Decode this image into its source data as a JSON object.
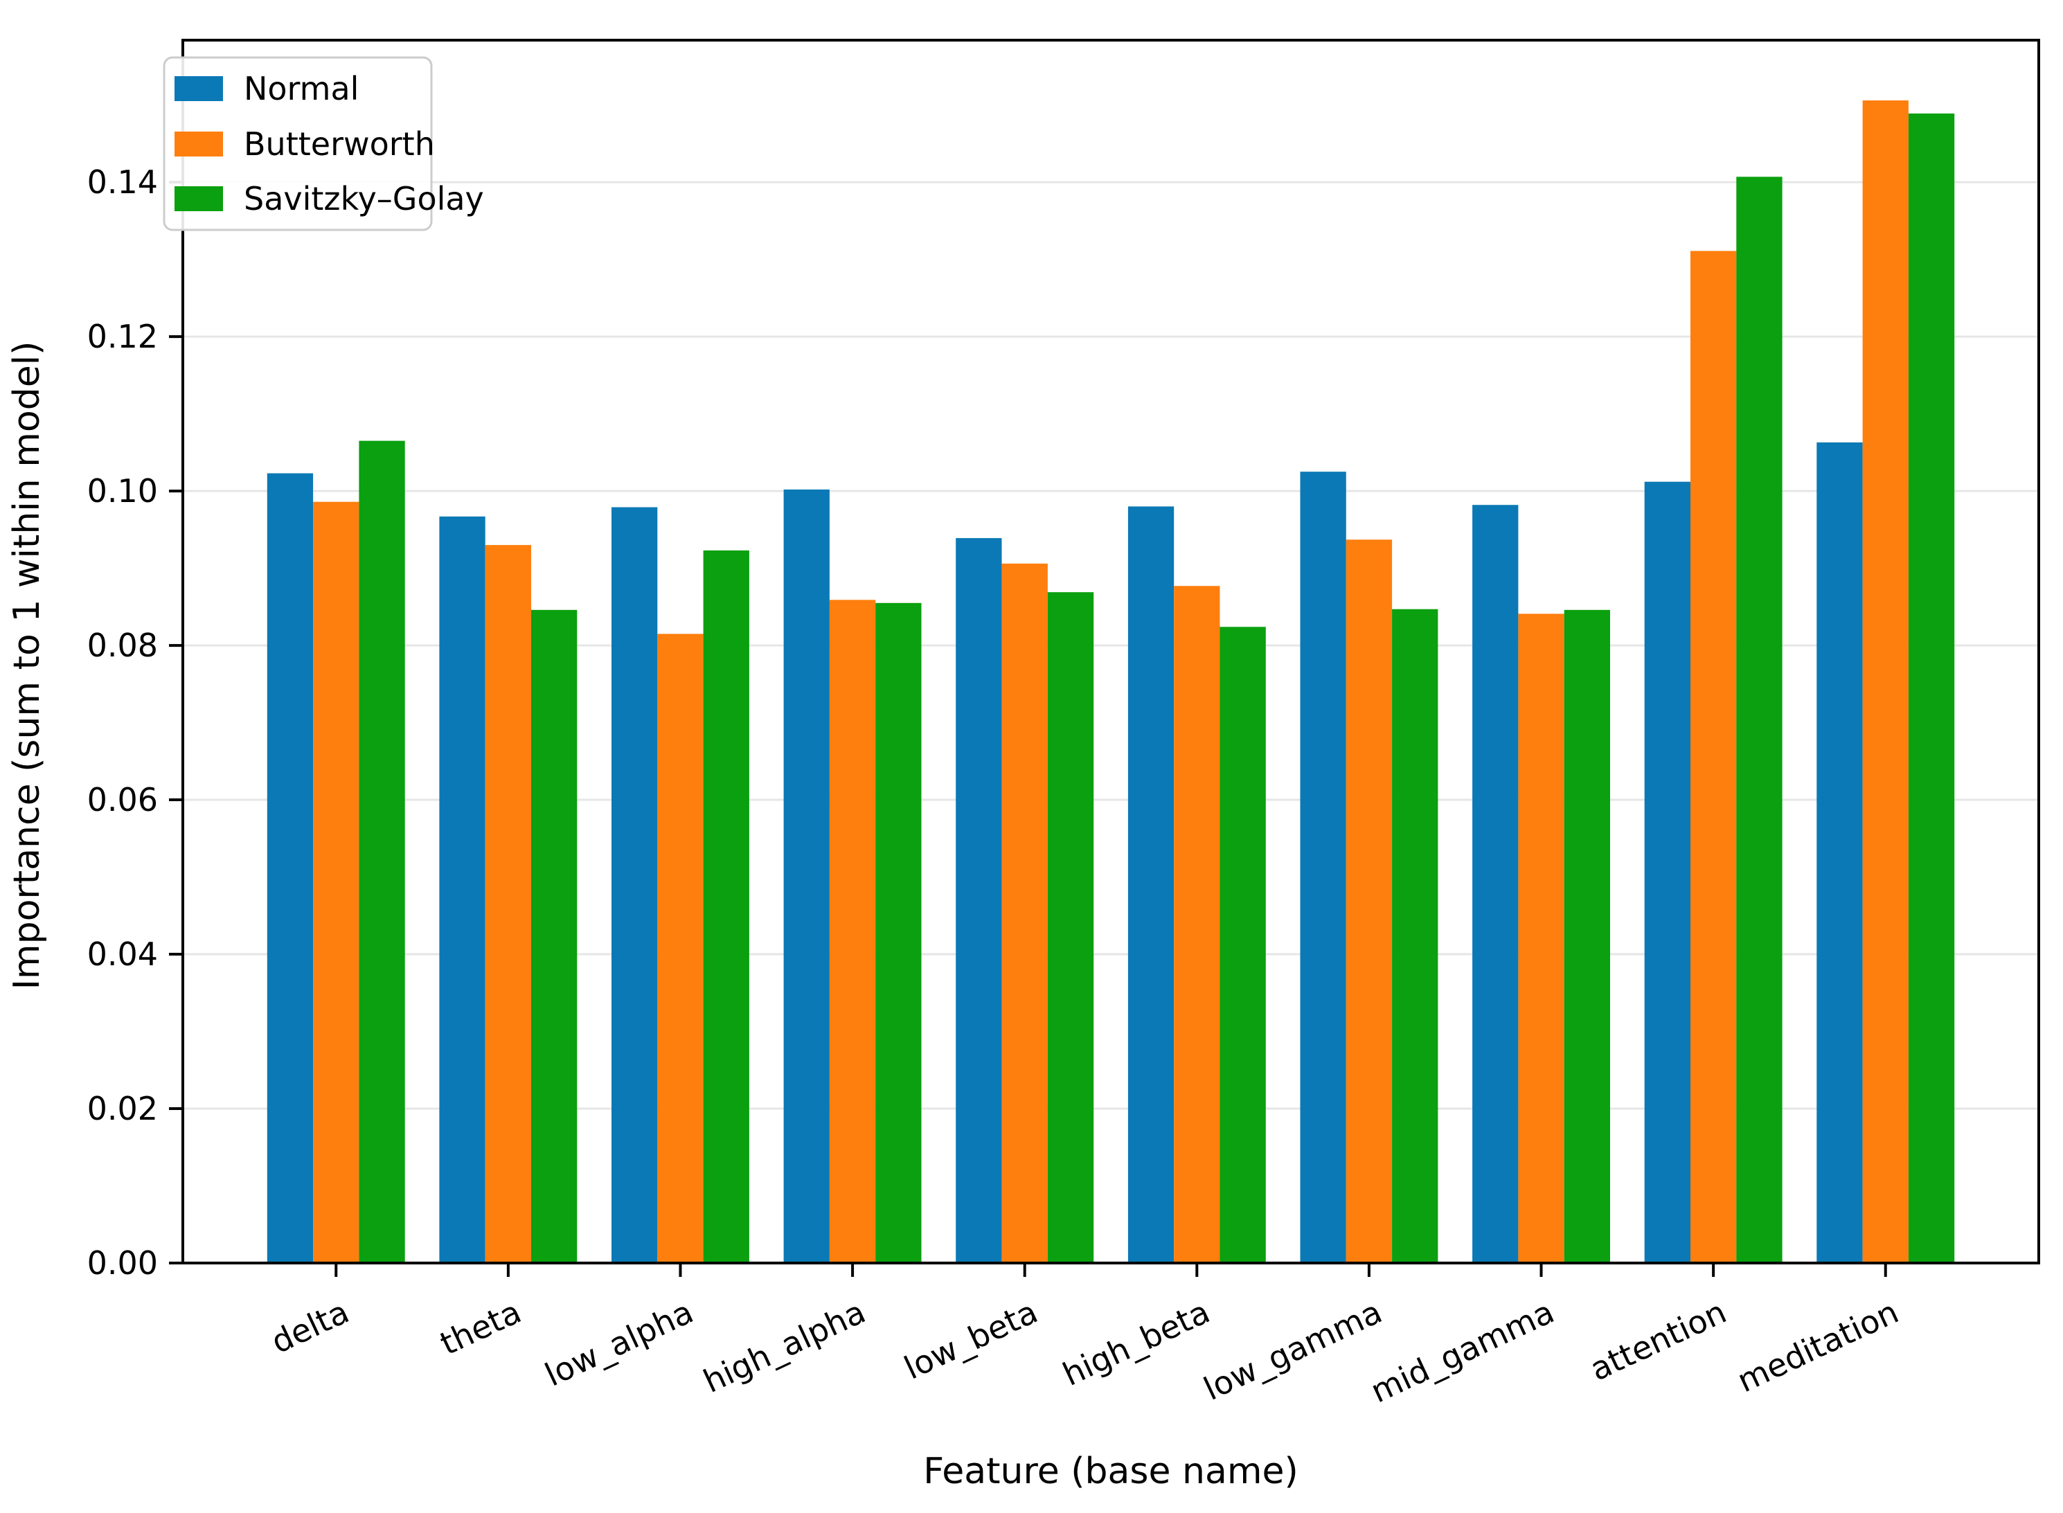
{
  "chart_data": {
    "type": "bar",
    "title": "",
    "xlabel": "Feature (base name)",
    "ylabel": "Importance (sum to 1 within model)",
    "categories": [
      "delta",
      "theta",
      "low_alpha",
      "high_alpha",
      "low_beta",
      "high_beta",
      "low_gamma",
      "mid_gamma",
      "attention",
      "meditation"
    ],
    "series": [
      {
        "name": "Normal",
        "color": "#0b79b5",
        "values": [
          0.1023,
          0.0967,
          0.0979,
          0.1002,
          0.0939,
          0.098,
          0.1025,
          0.0982,
          0.1012,
          0.1063
        ]
      },
      {
        "name": "Butterworth",
        "color": "#ff7f0e",
        "values": [
          0.0986,
          0.093,
          0.0815,
          0.0859,
          0.0906,
          0.0877,
          0.0937,
          0.0841,
          0.1311,
          0.1506
        ]
      },
      {
        "name": "Savitzky–Golay",
        "color": "#0aa00f",
        "values": [
          0.1065,
          0.0846,
          0.0923,
          0.0855,
          0.0869,
          0.0824,
          0.0847,
          0.0846,
          0.1407,
          0.1489
        ]
      }
    ],
    "ylim": [
      0,
      0.1584
    ],
    "yticks": [
      0.0,
      0.02,
      0.04,
      0.06,
      0.08,
      0.1,
      0.12,
      0.14
    ],
    "ytick_labels": [
      "0.00",
      "0.02",
      "0.04",
      "0.06",
      "0.08",
      "0.10",
      "0.12",
      "0.14"
    ],
    "grid": true,
    "grid_color": "#e6e6e6",
    "legend_position": "upper left",
    "axis_color": "#000000",
    "background_color": "#ffffff",
    "xtick_rotation_deg": 25
  }
}
